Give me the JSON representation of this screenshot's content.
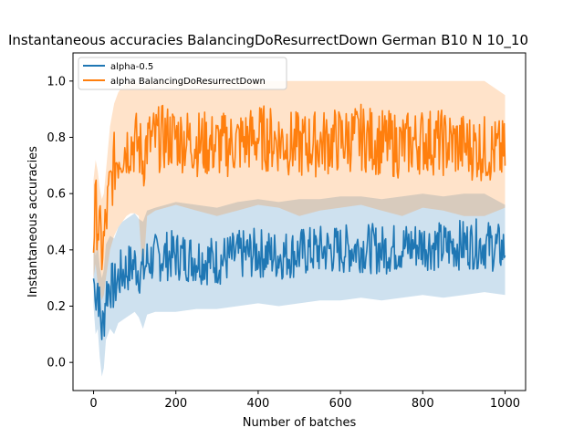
{
  "chart_data": {
    "type": "line",
    "title": "Instantaneous accuracies BalancingDoResurrectDown German B10 N 10_10",
    "xlabel": "Number of batches",
    "ylabel": "Instantaneous accuracies",
    "xlim": [
      -50,
      1050
    ],
    "ylim": [
      -0.1,
      1.1
    ],
    "xticks": [
      0,
      200,
      400,
      600,
      800,
      1000
    ],
    "yticks": [
      0.0,
      0.2,
      0.4,
      0.6,
      0.8,
      1.0
    ],
    "legend_position": "upper-left",
    "grid": false,
    "series": [
      {
        "name": "alpha-0.5",
        "color": "#1f77b4",
        "x": [
          0,
          5,
          10,
          15,
          20,
          25,
          30,
          40,
          50,
          60,
          70,
          80,
          90,
          100,
          110,
          120,
          130,
          150,
          175,
          200,
          250,
          300,
          350,
          400,
          450,
          500,
          550,
          600,
          650,
          700,
          750,
          800,
          850,
          900,
          950,
          1000
        ],
        "mean": [
          0.3,
          0.22,
          0.28,
          0.18,
          0.12,
          0.15,
          0.25,
          0.28,
          0.26,
          0.3,
          0.32,
          0.33,
          0.34,
          0.35,
          0.33,
          0.32,
          0.36,
          0.37,
          0.38,
          0.38,
          0.37,
          0.36,
          0.38,
          0.39,
          0.38,
          0.39,
          0.4,
          0.4,
          0.41,
          0.4,
          0.41,
          0.42,
          0.41,
          0.42,
          0.42,
          0.4
        ],
        "lower": [
          0.2,
          0.1,
          0.12,
          0.02,
          -0.05,
          -0.02,
          0.08,
          0.12,
          0.1,
          0.14,
          0.15,
          0.16,
          0.17,
          0.18,
          0.16,
          0.12,
          0.17,
          0.18,
          0.18,
          0.18,
          0.19,
          0.19,
          0.2,
          0.21,
          0.2,
          0.21,
          0.22,
          0.22,
          0.23,
          0.22,
          0.23,
          0.24,
          0.23,
          0.24,
          0.25,
          0.24
        ],
        "upper": [
          0.45,
          0.38,
          0.42,
          0.34,
          0.3,
          0.33,
          0.42,
          0.45,
          0.44,
          0.48,
          0.5,
          0.51,
          0.52,
          0.53,
          0.51,
          0.5,
          0.54,
          0.55,
          0.56,
          0.57,
          0.56,
          0.55,
          0.57,
          0.58,
          0.57,
          0.58,
          0.58,
          0.59,
          0.59,
          0.58,
          0.59,
          0.6,
          0.59,
          0.6,
          0.6,
          0.56
        ]
      },
      {
        "name": "alpha BalancingDoResurrectDown",
        "color": "#ff7f0e",
        "x": [
          0,
          5,
          10,
          15,
          20,
          25,
          30,
          40,
          50,
          60,
          70,
          80,
          90,
          100,
          110,
          120,
          130,
          150,
          175,
          200,
          250,
          300,
          350,
          400,
          450,
          500,
          550,
          600,
          650,
          700,
          750,
          800,
          850,
          900,
          950,
          1000
        ],
        "mean": [
          0.45,
          0.55,
          0.5,
          0.45,
          0.4,
          0.42,
          0.5,
          0.62,
          0.7,
          0.74,
          0.76,
          0.77,
          0.78,
          0.78,
          0.77,
          0.72,
          0.78,
          0.79,
          0.8,
          0.8,
          0.78,
          0.77,
          0.78,
          0.8,
          0.79,
          0.77,
          0.78,
          0.79,
          0.8,
          0.78,
          0.77,
          0.79,
          0.78,
          0.77,
          0.76,
          0.74
        ],
        "lower": [
          0.3,
          0.35,
          0.28,
          0.25,
          0.22,
          0.24,
          0.3,
          0.4,
          0.45,
          0.48,
          0.5,
          0.52,
          0.53,
          0.53,
          0.52,
          0.3,
          0.52,
          0.54,
          0.55,
          0.56,
          0.54,
          0.52,
          0.54,
          0.56,
          0.55,
          0.52,
          0.54,
          0.55,
          0.56,
          0.54,
          0.52,
          0.55,
          0.54,
          0.52,
          0.52,
          0.55
        ],
        "upper": [
          0.65,
          0.72,
          0.68,
          0.62,
          0.58,
          0.6,
          0.68,
          0.84,
          0.92,
          0.96,
          0.98,
          0.99,
          1.0,
          1.0,
          0.99,
          0.98,
          1.0,
          1.0,
          1.0,
          1.0,
          1.0,
          1.0,
          1.0,
          1.0,
          1.0,
          1.0,
          1.0,
          1.0,
          1.0,
          1.0,
          1.0,
          1.0,
          1.0,
          1.0,
          1.0,
          0.95
        ]
      }
    ]
  }
}
